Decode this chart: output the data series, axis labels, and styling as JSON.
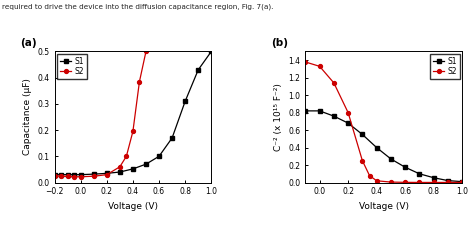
{
  "panel_a": {
    "label": "(a)",
    "xlabel": "Voltage (V)",
    "ylabel": "Capacitance (μF)",
    "xlim": [
      -0.2,
      1.0
    ],
    "ylim": [
      0.0,
      0.5
    ],
    "xticks": [
      -0.2,
      0.0,
      0.2,
      0.4,
      0.6,
      0.8,
      1.0
    ],
    "yticks": [
      0.0,
      0.1,
      0.2,
      0.3,
      0.4,
      0.5
    ],
    "S1_x": [
      -0.2,
      -0.15,
      -0.1,
      -0.05,
      0.0,
      0.1,
      0.2,
      0.3,
      0.4,
      0.5,
      0.6,
      0.7,
      0.8,
      0.9,
      1.0
    ],
    "S1_y": [
      0.03,
      0.03,
      0.03,
      0.03,
      0.03,
      0.032,
      0.035,
      0.04,
      0.052,
      0.07,
      0.1,
      0.17,
      0.31,
      0.43,
      0.5
    ],
    "S2_x": [
      -0.2,
      -0.15,
      -0.1,
      -0.05,
      0.0,
      0.1,
      0.2,
      0.3,
      0.35,
      0.4,
      0.45,
      0.5
    ],
    "S2_y": [
      0.025,
      0.024,
      0.023,
      0.022,
      0.022,
      0.024,
      0.03,
      0.06,
      0.1,
      0.195,
      0.385,
      0.5
    ],
    "S1_color": "#000000",
    "S2_color": "#cc0000",
    "legend_labels": [
      "S1",
      "S2"
    ]
  },
  "panel_b": {
    "label": "(b)",
    "xlabel": "Voltage (V)",
    "ylabel": "C⁻² (x 10¹⁵ F⁻²)",
    "xlim": [
      -0.1,
      1.0
    ],
    "ylim": [
      0.0,
      1.5
    ],
    "xticks": [
      0.0,
      0.2,
      0.4,
      0.6,
      0.8,
      1.0
    ],
    "yticks": [
      0.0,
      0.2,
      0.4,
      0.6,
      0.8,
      1.0,
      1.2,
      1.4
    ],
    "S1_x": [
      -0.1,
      0.0,
      0.1,
      0.2,
      0.3,
      0.4,
      0.5,
      0.6,
      0.7,
      0.8,
      0.9,
      1.0
    ],
    "S1_y": [
      0.82,
      0.82,
      0.76,
      0.68,
      0.55,
      0.4,
      0.27,
      0.175,
      0.1,
      0.055,
      0.022,
      0.01
    ],
    "S2_x": [
      -0.1,
      0.0,
      0.1,
      0.2,
      0.3,
      0.35,
      0.4,
      0.5,
      0.6,
      0.7,
      0.8,
      0.9,
      1.0
    ],
    "S2_y": [
      1.38,
      1.33,
      1.14,
      0.8,
      0.25,
      0.08,
      0.02,
      0.005,
      0.002,
      0.001,
      0.001,
      0.001,
      0.001
    ],
    "S1_color": "#000000",
    "S2_color": "#cc0000",
    "legend_labels": [
      "S1",
      "S2"
    ]
  },
  "text_top": "required to drive the device into the diffusion capacitance region, Fig. 7(a).",
  "background_color": "#ffffff"
}
